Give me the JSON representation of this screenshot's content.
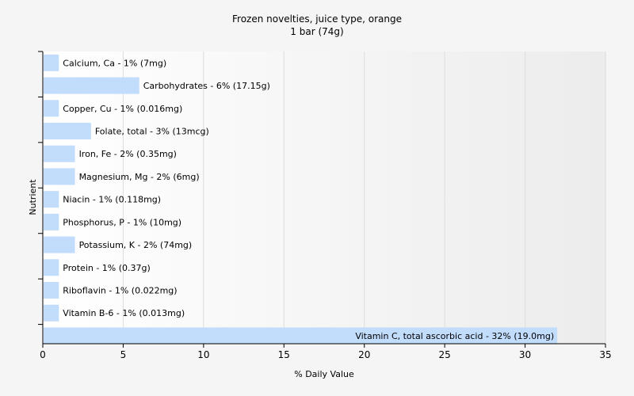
{
  "chart_data": {
    "type": "bar",
    "orientation": "horizontal",
    "title": "Frozen novelties, juice type, orange",
    "subtitle": "1 bar (74g)",
    "xlabel": "% Daily Value",
    "ylabel": "Nutrient",
    "xlim": [
      0,
      35
    ],
    "xticks": [
      0,
      5,
      10,
      15,
      20,
      25,
      30,
      35
    ],
    "grid": true,
    "bar_color": "#c2dcfb",
    "categories": [
      "Calcium, Ca",
      "Carbohydrates",
      "Copper, Cu",
      "Folate, total",
      "Iron, Fe",
      "Magnesium, Mg",
      "Niacin",
      "Phosphorus, P",
      "Potassium, K",
      "Protein",
      "Riboflavin",
      "Vitamin B-6",
      "Vitamin C, total ascorbic acid"
    ],
    "values": [
      1,
      6,
      1,
      3,
      2,
      2,
      1,
      1,
      2,
      1,
      1,
      1,
      32
    ],
    "labels": [
      "Calcium, Ca - 1% (7mg)",
      "Carbohydrates - 6% (17.15g)",
      "Copper, Cu - 1% (0.016mg)",
      "Folate, total - 3% (13mcg)",
      "Iron, Fe - 2% (0.35mg)",
      "Magnesium, Mg - 2% (6mg)",
      "Niacin - 1% (0.118mg)",
      "Phosphorus, P - 1% (10mg)",
      "Potassium, K - 2% (74mg)",
      "Protein - 1% (0.37g)",
      "Riboflavin - 1% (0.022mg)",
      "Vitamin B-6 - 1% (0.013mg)",
      "Vitamin C, total ascorbic acid - 32% (19.0mg)"
    ]
  }
}
